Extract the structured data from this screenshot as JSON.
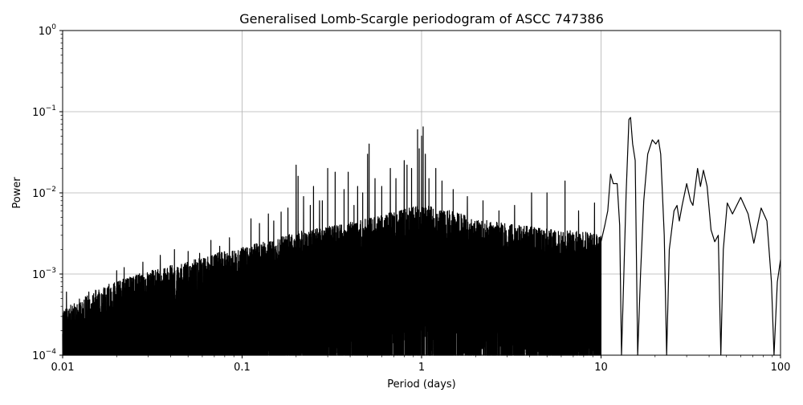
{
  "chart_data": {
    "type": "line",
    "title": "Generalised Lomb-Scargle periodogram of ASCC 747386",
    "xlabel": "Period (days)",
    "ylabel": "Power",
    "xscale": "log",
    "yscale": "log",
    "xlim": [
      0.01,
      100
    ],
    "ylim": [
      0.0001,
      1
    ],
    "grid": true,
    "line_color": "#000000",
    "x_ticks": [
      {
        "value": 0.01,
        "label": "0.01"
      },
      {
        "value": 0.1,
        "label": "0.1"
      },
      {
        "value": 1,
        "label": "1"
      },
      {
        "value": 10,
        "label": "10"
      },
      {
        "value": 100,
        "label": "100"
      }
    ],
    "y_ticks": [
      {
        "value": 0.0001,
        "base": "10",
        "exp": "−4"
      },
      {
        "value": 0.001,
        "base": "10",
        "exp": "−3"
      },
      {
        "value": 0.01,
        "base": "10",
        "exp": "−2"
      },
      {
        "value": 0.1,
        "base": "10",
        "exp": "−1"
      },
      {
        "value": 1,
        "base": "10",
        "exp": "0"
      }
    ],
    "series": [
      {
        "noise_envelope": [
          [
            0.01,
            0.0003
          ],
          [
            0.013,
            0.00045
          ],
          [
            0.02,
            0.0007
          ],
          [
            0.03,
            0.0009
          ],
          [
            0.05,
            0.0012
          ],
          [
            0.08,
            0.0016
          ],
          [
            0.1,
            0.0018
          ],
          [
            0.15,
            0.0022
          ],
          [
            0.2,
            0.0028
          ],
          [
            0.3,
            0.0032
          ],
          [
            0.5,
            0.004
          ],
          [
            0.7,
            0.005
          ],
          [
            1,
            0.006
          ],
          [
            1.5,
            0.005
          ],
          [
            2,
            0.004
          ],
          [
            3,
            0.0035
          ],
          [
            5,
            0.003
          ],
          [
            8,
            0.0028
          ],
          [
            10,
            0.0025
          ]
        ],
        "peaks": [
          [
            0.0105,
            0.0006
          ],
          [
            0.014,
            0.0006
          ],
          [
            0.02,
            0.0011
          ],
          [
            0.022,
            0.0012
          ],
          [
            0.028,
            0.0014
          ],
          [
            0.035,
            0.0017
          ],
          [
            0.042,
            0.002
          ],
          [
            0.05,
            0.0019
          ],
          [
            0.058,
            0.0018
          ],
          [
            0.067,
            0.0026
          ],
          [
            0.075,
            0.0022
          ],
          [
            0.085,
            0.0028
          ],
          [
            0.1,
            0.002
          ],
          [
            0.112,
            0.0048
          ],
          [
            0.125,
            0.0042
          ],
          [
            0.14,
            0.0055
          ],
          [
            0.15,
            0.0045
          ],
          [
            0.165,
            0.0058
          ],
          [
            0.18,
            0.0065
          ],
          [
            0.2,
            0.022
          ],
          [
            0.205,
            0.016
          ],
          [
            0.22,
            0.009
          ],
          [
            0.24,
            0.007
          ],
          [
            0.25,
            0.012
          ],
          [
            0.27,
            0.008
          ],
          [
            0.28,
            0.008
          ],
          [
            0.3,
            0.02
          ],
          [
            0.33,
            0.018
          ],
          [
            0.37,
            0.011
          ],
          [
            0.39,
            0.018
          ],
          [
            0.42,
            0.007
          ],
          [
            0.44,
            0.012
          ],
          [
            0.47,
            0.01
          ],
          [
            0.5,
            0.03
          ],
          [
            0.51,
            0.04
          ],
          [
            0.55,
            0.015
          ],
          [
            0.6,
            0.012
          ],
          [
            0.67,
            0.02
          ],
          [
            0.72,
            0.015
          ],
          [
            0.8,
            0.025
          ],
          [
            0.83,
            0.022
          ],
          [
            0.88,
            0.02
          ],
          [
            0.95,
            0.06
          ],
          [
            0.97,
            0.035
          ],
          [
            1.0,
            0.05
          ],
          [
            1.02,
            0.065
          ],
          [
            1.05,
            0.03
          ],
          [
            1.1,
            0.015
          ],
          [
            1.2,
            0.02
          ],
          [
            1.3,
            0.014
          ],
          [
            1.5,
            0.011
          ],
          [
            1.8,
            0.009
          ],
          [
            2.2,
            0.008
          ],
          [
            2.7,
            0.006
          ],
          [
            3.3,
            0.007
          ],
          [
            4.1,
            0.01
          ],
          [
            5.0,
            0.01
          ],
          [
            6.3,
            0.014
          ],
          [
            7.5,
            0.006
          ],
          [
            9.2,
            0.0075
          ]
        ],
        "smooth": [
          [
            10,
            0.0025
          ],
          [
            10.5,
            0.004
          ],
          [
            10.9,
            0.006
          ],
          [
            11.3,
            0.017
          ],
          [
            11.7,
            0.013
          ],
          [
            12.3,
            0.013
          ],
          [
            12.7,
            0.004
          ],
          [
            13.0,
            0.0001
          ],
          [
            13.4,
            0.001
          ],
          [
            13.8,
            0.01
          ],
          [
            14.3,
            0.08
          ],
          [
            14.6,
            0.085
          ],
          [
            15.0,
            0.04
          ],
          [
            15.5,
            0.025
          ],
          [
            16.0,
            0.0001
          ],
          [
            16.6,
            0.001
          ],
          [
            17.3,
            0.008
          ],
          [
            18.2,
            0.03
          ],
          [
            19.3,
            0.045
          ],
          [
            20.2,
            0.04
          ],
          [
            20.9,
            0.045
          ],
          [
            21.5,
            0.03
          ],
          [
            22.5,
            0.003
          ],
          [
            23.2,
            0.0001
          ],
          [
            24.0,
            0.002
          ],
          [
            25.5,
            0.006
          ],
          [
            26.5,
            0.007
          ],
          [
            27.3,
            0.0045
          ],
          [
            28.3,
            0.007
          ],
          [
            30.0,
            0.013
          ],
          [
            31.5,
            0.008
          ],
          [
            32.5,
            0.007
          ],
          [
            34.5,
            0.02
          ],
          [
            35.8,
            0.012
          ],
          [
            37.2,
            0.019
          ],
          [
            39.0,
            0.012
          ],
          [
            41.0,
            0.0035
          ],
          [
            43.0,
            0.0025
          ],
          [
            45.0,
            0.003
          ],
          [
            46.5,
            0.0001
          ],
          [
            48.0,
            0.002
          ],
          [
            50.5,
            0.0075
          ],
          [
            54.0,
            0.0055
          ],
          [
            60.0,
            0.0088
          ],
          [
            66.0,
            0.0055
          ],
          [
            71.0,
            0.0024
          ],
          [
            78.0,
            0.0065
          ],
          [
            84.0,
            0.0045
          ],
          [
            89.0,
            0.0008
          ],
          [
            92.0,
            0.0001
          ],
          [
            96.0,
            0.0008
          ],
          [
            100.0,
            0.0015
          ]
        ]
      }
    ]
  }
}
